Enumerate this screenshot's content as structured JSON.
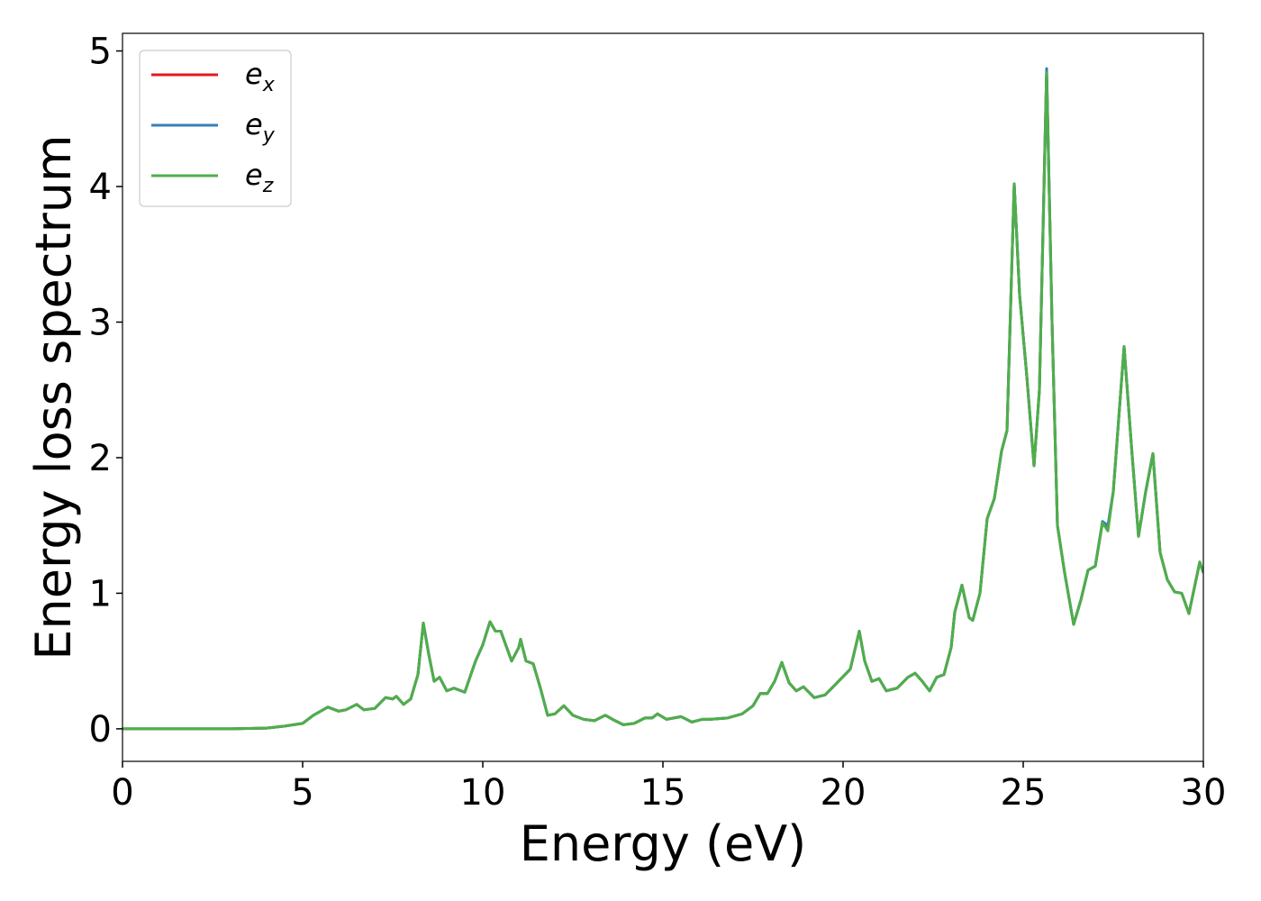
{
  "chart_data": {
    "type": "line",
    "xlabel": "Energy (eV)",
    "ylabel": "Energy loss spectrum",
    "x": [
      0,
      3,
      4,
      4.5,
      5,
      5.3,
      5.7,
      6,
      6.2,
      6.5,
      6.7,
      7,
      7.3,
      7.5,
      7.6,
      7.8,
      8,
      8.2,
      8.35,
      8.5,
      8.65,
      8.8,
      9,
      9.2,
      9.5,
      9.8,
      10,
      10.2,
      10.35,
      10.5,
      10.8,
      11,
      11.05,
      11.2,
      11.4,
      11.6,
      11.8,
      12,
      12.25,
      12.5,
      12.8,
      13.1,
      13.4,
      13.6,
      13.9,
      14.2,
      14.5,
      14.7,
      14.85,
      15.1,
      15.5,
      15.8,
      16.1,
      16.3,
      16.8,
      17.2,
      17.5,
      17.7,
      17.9,
      18.1,
      18.3,
      18.5,
      18.7,
      18.9,
      19.2,
      19.5,
      19.8,
      20.2,
      20.45,
      20.6,
      20.8,
      21,
      21.2,
      21.5,
      21.8,
      22,
      22.2,
      22.4,
      22.6,
      22.8,
      23,
      23.1,
      23.3,
      23.5,
      23.6,
      23.8,
      24,
      24.2,
      24.4,
      24.55,
      24.75,
      24.9,
      25.1,
      25.3,
      25.45,
      25.65,
      25.8,
      25.95,
      26.15,
      26.4,
      26.6,
      26.8,
      27,
      27.2,
      27.35,
      27.5,
      27.8,
      28,
      28.2,
      28.4,
      28.6,
      28.8,
      29,
      29.2,
      29.4,
      29.6,
      29.9,
      30
    ],
    "series": [
      {
        "name": "ex",
        "color": "#e41a1c",
        "values": [
          0,
          0,
          0.005,
          0.02,
          0.04,
          0.1,
          0.16,
          0.13,
          0.14,
          0.18,
          0.14,
          0.15,
          0.23,
          0.22,
          0.24,
          0.18,
          0.22,
          0.4,
          0.78,
          0.55,
          0.35,
          0.38,
          0.28,
          0.3,
          0.27,
          0.5,
          0.62,
          0.79,
          0.72,
          0.72,
          0.5,
          0.6,
          0.66,
          0.5,
          0.48,
          0.3,
          0.1,
          0.11,
          0.17,
          0.1,
          0.07,
          0.06,
          0.1,
          0.07,
          0.03,
          0.04,
          0.08,
          0.08,
          0.11,
          0.07,
          0.09,
          0.05,
          0.07,
          0.07,
          0.08,
          0.11,
          0.17,
          0.26,
          0.26,
          0.35,
          0.49,
          0.34,
          0.28,
          0.31,
          0.23,
          0.25,
          0.33,
          0.44,
          0.72,
          0.5,
          0.35,
          0.37,
          0.28,
          0.3,
          0.38,
          0.41,
          0.35,
          0.28,
          0.38,
          0.4,
          0.6,
          0.86,
          1.06,
          0.82,
          0.8,
          1.0,
          1.55,
          1.7,
          2.05,
          2.2,
          4.02,
          3.2,
          2.6,
          1.94,
          2.5,
          4.86,
          3.0,
          1.5,
          1.15,
          0.77,
          0.95,
          1.17,
          1.2,
          1.52,
          1.48,
          1.75,
          2.82,
          2.1,
          1.42,
          1.75,
          2.03,
          1.3,
          1.1,
          1.01,
          1.0,
          0.85,
          1.23,
          1.15
        ]
      },
      {
        "name": "ey",
        "color": "#377eb8",
        "values": [
          0,
          0,
          0.005,
          0.02,
          0.04,
          0.1,
          0.16,
          0.13,
          0.14,
          0.18,
          0.14,
          0.15,
          0.23,
          0.22,
          0.24,
          0.18,
          0.22,
          0.4,
          0.78,
          0.55,
          0.35,
          0.38,
          0.28,
          0.3,
          0.27,
          0.5,
          0.62,
          0.79,
          0.72,
          0.72,
          0.5,
          0.6,
          0.66,
          0.5,
          0.48,
          0.3,
          0.1,
          0.11,
          0.17,
          0.1,
          0.07,
          0.06,
          0.1,
          0.07,
          0.03,
          0.04,
          0.08,
          0.08,
          0.11,
          0.07,
          0.09,
          0.05,
          0.07,
          0.07,
          0.08,
          0.11,
          0.17,
          0.26,
          0.26,
          0.35,
          0.49,
          0.34,
          0.28,
          0.31,
          0.23,
          0.25,
          0.33,
          0.44,
          0.72,
          0.5,
          0.35,
          0.37,
          0.28,
          0.3,
          0.38,
          0.41,
          0.35,
          0.28,
          0.38,
          0.4,
          0.6,
          0.86,
          1.06,
          0.82,
          0.8,
          1.0,
          1.55,
          1.7,
          2.05,
          2.2,
          4.02,
          3.2,
          2.6,
          1.94,
          2.5,
          4.87,
          3.0,
          1.5,
          1.15,
          0.77,
          0.95,
          1.17,
          1.2,
          1.53,
          1.5,
          1.75,
          2.82,
          2.1,
          1.42,
          1.75,
          2.03,
          1.3,
          1.1,
          1.01,
          1.0,
          0.85,
          1.23,
          1.15
        ]
      },
      {
        "name": "ez",
        "color": "#4daf4a",
        "values": [
          0,
          0,
          0.005,
          0.02,
          0.04,
          0.1,
          0.16,
          0.13,
          0.14,
          0.18,
          0.14,
          0.15,
          0.23,
          0.22,
          0.24,
          0.18,
          0.22,
          0.4,
          0.78,
          0.55,
          0.35,
          0.38,
          0.28,
          0.3,
          0.27,
          0.5,
          0.62,
          0.79,
          0.72,
          0.72,
          0.5,
          0.6,
          0.66,
          0.5,
          0.48,
          0.3,
          0.1,
          0.11,
          0.17,
          0.1,
          0.07,
          0.06,
          0.1,
          0.07,
          0.03,
          0.04,
          0.08,
          0.08,
          0.11,
          0.07,
          0.09,
          0.05,
          0.07,
          0.07,
          0.08,
          0.11,
          0.17,
          0.26,
          0.26,
          0.35,
          0.49,
          0.34,
          0.28,
          0.31,
          0.23,
          0.25,
          0.33,
          0.44,
          0.72,
          0.5,
          0.35,
          0.37,
          0.28,
          0.3,
          0.38,
          0.41,
          0.35,
          0.28,
          0.38,
          0.4,
          0.6,
          0.86,
          1.06,
          0.82,
          0.8,
          1.0,
          1.55,
          1.7,
          2.05,
          2.2,
          4.02,
          3.2,
          2.6,
          1.94,
          2.5,
          4.84,
          3.0,
          1.5,
          1.15,
          0.77,
          0.95,
          1.17,
          1.2,
          1.52,
          1.46,
          1.75,
          2.82,
          2.1,
          1.42,
          1.75,
          2.03,
          1.3,
          1.1,
          1.01,
          1.0,
          0.85,
          1.23,
          1.15
        ]
      }
    ],
    "xlim": [
      0,
      30
    ],
    "xticks": [
      0,
      5,
      10,
      15,
      20,
      25,
      30
    ],
    "ylim": [
      -0.24,
      5.13
    ],
    "yticks": [
      0,
      1,
      2,
      3,
      4,
      5
    ],
    "legend": "upper left",
    "grid": false
  }
}
